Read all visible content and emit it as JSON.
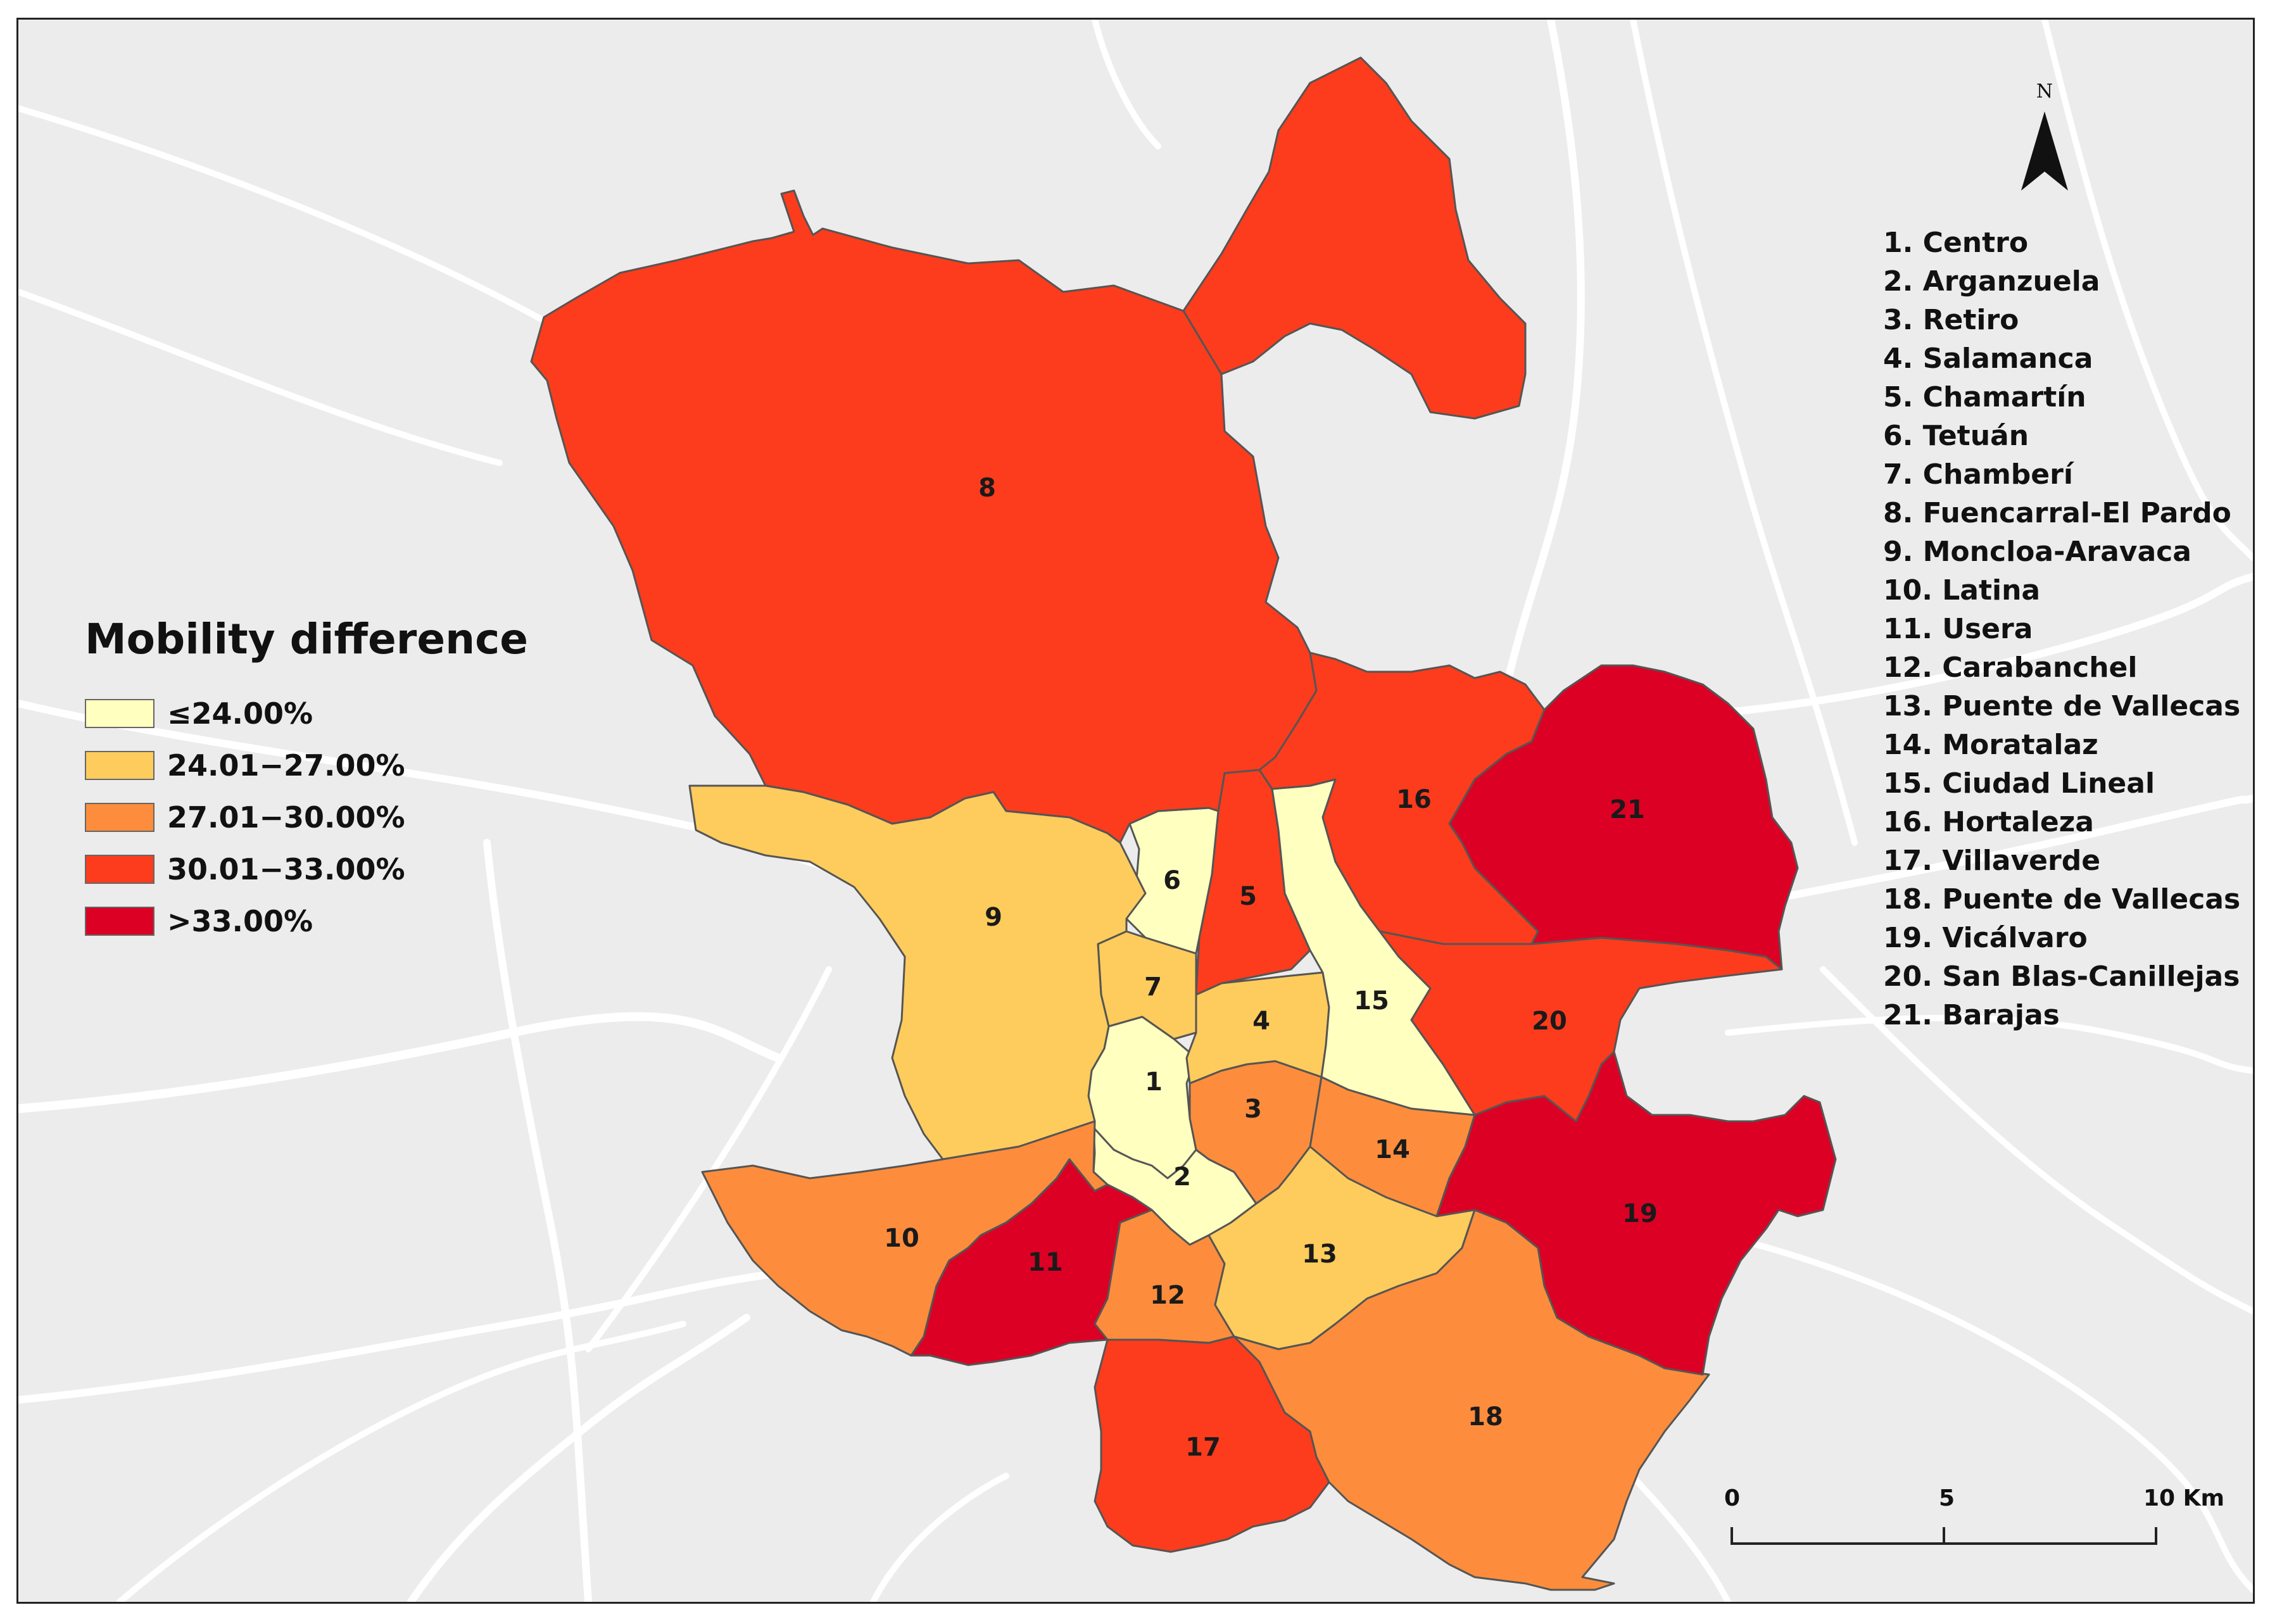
{
  "legend": {
    "title": "Mobility difference",
    "classes": [
      {
        "label": "≤24.00%",
        "color": "#ffffbf"
      },
      {
        "label": "24.01−27.00%",
        "color": "#fecc5c"
      },
      {
        "label": "27.01−30.00%",
        "color": "#fd8d3c"
      },
      {
        "label": "30.01−33.00%",
        "color": "#fc3c1c"
      },
      {
        "label": ">33.00%",
        "color": "#dc0024"
      }
    ]
  },
  "district_list": [
    "1. Centro",
    "2. Arganzuela",
    "3. Retiro",
    "4. Salamanca",
    "5. Chamartín",
    "6. Tetuán",
    "7. Chamberí",
    "8. Fuencarral-El Pardo",
    "9. Moncloa-Aravaca",
    "10. Latina",
    "11. Usera",
    "12. Carabanchel",
    "13. Puente de Vallecas",
    "14. Moratalaz",
    "15. Ciudad Lineal",
    "16. Hortaleza",
    "17. Villaverde",
    "18. Puente de Vallecas",
    "19. Vicálvaro",
    "20. San Blas-Canillejas",
    "21. Barajas"
  ],
  "districts": [
    {
      "number": "1",
      "class": 0
    },
    {
      "number": "2",
      "class": 0
    },
    {
      "number": "3",
      "class": 2
    },
    {
      "number": "4",
      "class": 1
    },
    {
      "number": "5",
      "class": 3
    },
    {
      "number": "6",
      "class": 0
    },
    {
      "number": "7",
      "class": 1
    },
    {
      "number": "8",
      "class": 3
    },
    {
      "number": "9",
      "class": 1
    },
    {
      "number": "10",
      "class": 2
    },
    {
      "number": "11",
      "class": 4
    },
    {
      "number": "12",
      "class": 2
    },
    {
      "number": "13",
      "class": 1
    },
    {
      "number": "14",
      "class": 2
    },
    {
      "number": "15",
      "class": 0
    },
    {
      "number": "16",
      "class": 3
    },
    {
      "number": "17",
      "class": 3
    },
    {
      "number": "18",
      "class": 2
    },
    {
      "number": "19",
      "class": 4
    },
    {
      "number": "20",
      "class": 3
    },
    {
      "number": "21",
      "class": 4
    }
  ],
  "north_arrow": {
    "label": "N"
  },
  "scale_bar": {
    "labels": [
      "0",
      "5",
      "10 Km"
    ]
  },
  "colors": {
    "background": "#ececec",
    "roads": "#ffffff",
    "boundary": "#555555"
  }
}
